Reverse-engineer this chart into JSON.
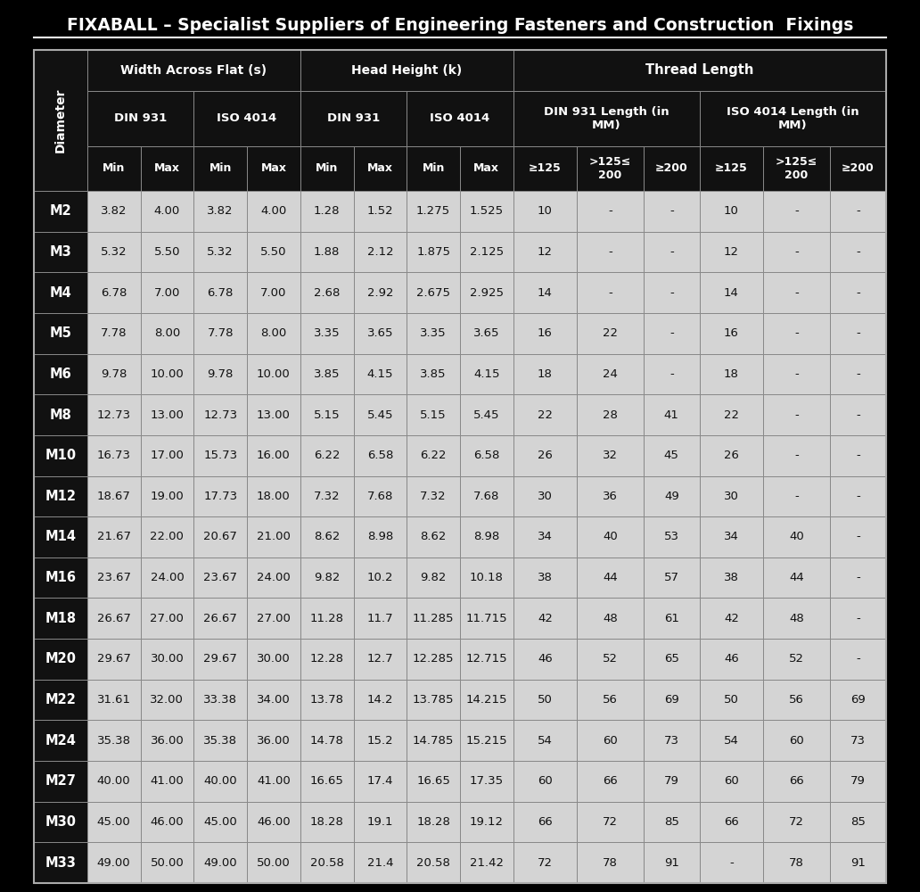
{
  "title": "FIXABALL – Specialist Suppliers of Engineering Fasteners and Construction  Fixings",
  "bg_color": "#000000",
  "header_bg": "#111111",
  "data_bg_dark": "#0d0d0d",
  "data_bg_light": "#d8d8d8",
  "text_white": "#ffffff",
  "text_dark": "#111111",
  "border_color": "#888888",
  "rows": [
    [
      "M2",
      "3.82",
      "4.00",
      "3.82",
      "4.00",
      "1.28",
      "1.52",
      "1.275",
      "1.525",
      "10",
      "-",
      "-",
      "10",
      "-",
      "-"
    ],
    [
      "M3",
      "5.32",
      "5.50",
      "5.32",
      "5.50",
      "1.88",
      "2.12",
      "1.875",
      "2.125",
      "12",
      "-",
      "-",
      "12",
      "-",
      "-"
    ],
    [
      "M4",
      "6.78",
      "7.00",
      "6.78",
      "7.00",
      "2.68",
      "2.92",
      "2.675",
      "2.925",
      "14",
      "-",
      "-",
      "14",
      "-",
      "-"
    ],
    [
      "M5",
      "7.78",
      "8.00",
      "7.78",
      "8.00",
      "3.35",
      "3.65",
      "3.35",
      "3.65",
      "16",
      "22",
      "-",
      "16",
      "-",
      "-"
    ],
    [
      "M6",
      "9.78",
      "10.00",
      "9.78",
      "10.00",
      "3.85",
      "4.15",
      "3.85",
      "4.15",
      "18",
      "24",
      "-",
      "18",
      "-",
      "-"
    ],
    [
      "M8",
      "12.73",
      "13.00",
      "12.73",
      "13.00",
      "5.15",
      "5.45",
      "5.15",
      "5.45",
      "22",
      "28",
      "41",
      "22",
      "-",
      "-"
    ],
    [
      "M10",
      "16.73",
      "17.00",
      "15.73",
      "16.00",
      "6.22",
      "6.58",
      "6.22",
      "6.58",
      "26",
      "32",
      "45",
      "26",
      "-",
      "-"
    ],
    [
      "M12",
      "18.67",
      "19.00",
      "17.73",
      "18.00",
      "7.32",
      "7.68",
      "7.32",
      "7.68",
      "30",
      "36",
      "49",
      "30",
      "-",
      "-"
    ],
    [
      "M14",
      "21.67",
      "22.00",
      "20.67",
      "21.00",
      "8.62",
      "8.98",
      "8.62",
      "8.98",
      "34",
      "40",
      "53",
      "34",
      "40",
      "-"
    ],
    [
      "M16",
      "23.67",
      "24.00",
      "23.67",
      "24.00",
      "9.82",
      "10.2",
      "9.82",
      "10.18",
      "38",
      "44",
      "57",
      "38",
      "44",
      "-"
    ],
    [
      "M18",
      "26.67",
      "27.00",
      "26.67",
      "27.00",
      "11.28",
      "11.7",
      "11.285",
      "11.715",
      "42",
      "48",
      "61",
      "42",
      "48",
      "-"
    ],
    [
      "M20",
      "29.67",
      "30.00",
      "29.67",
      "30.00",
      "12.28",
      "12.7",
      "12.285",
      "12.715",
      "46",
      "52",
      "65",
      "46",
      "52",
      "-"
    ],
    [
      "M22",
      "31.61",
      "32.00",
      "33.38",
      "34.00",
      "13.78",
      "14.2",
      "13.785",
      "14.215",
      "50",
      "56",
      "69",
      "50",
      "56",
      "69"
    ],
    [
      "M24",
      "35.38",
      "36.00",
      "35.38",
      "36.00",
      "14.78",
      "15.2",
      "14.785",
      "15.215",
      "54",
      "60",
      "73",
      "54",
      "60",
      "73"
    ],
    [
      "M27",
      "40.00",
      "41.00",
      "40.00",
      "41.00",
      "16.65",
      "17.4",
      "16.65",
      "17.35",
      "60",
      "66",
      "79",
      "60",
      "66",
      "79"
    ],
    [
      "M30",
      "45.00",
      "46.00",
      "45.00",
      "46.00",
      "18.28",
      "19.1",
      "18.28",
      "19.12",
      "66",
      "72",
      "85",
      "66",
      "72",
      "85"
    ],
    [
      "M33",
      "49.00",
      "50.00",
      "49.00",
      "50.00",
      "20.58",
      "21.4",
      "20.58",
      "21.42",
      "72",
      "78",
      "91",
      "-",
      "78",
      "91"
    ]
  ]
}
